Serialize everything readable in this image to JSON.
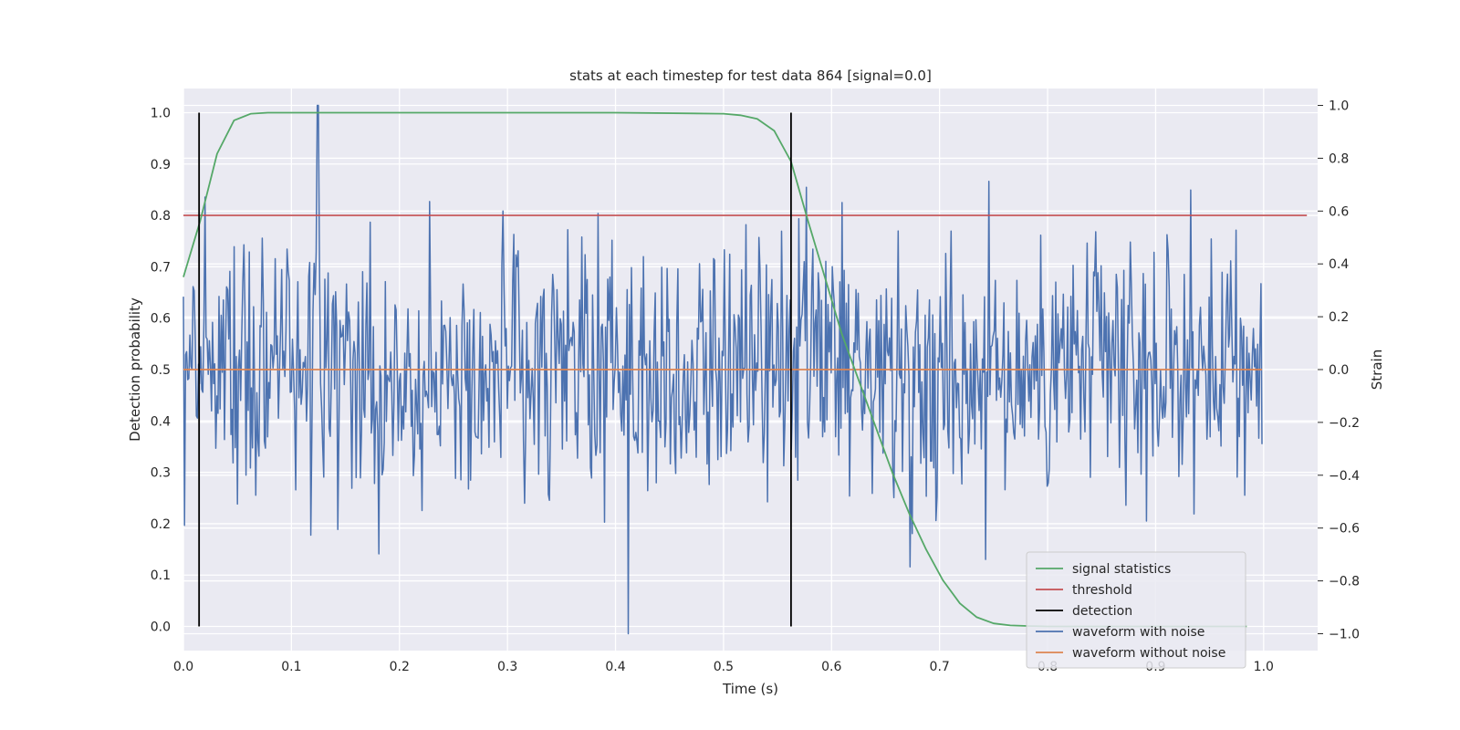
{
  "chart_data": {
    "type": "line",
    "title": "stats at each timestep for test data 864 [signal=0.0]",
    "xlabel": "Time (s)",
    "ylabel": "Detection probability",
    "y2label": "Strain",
    "xlim": [
      0.0,
      1.05
    ],
    "ylim": [
      -0.047,
      1.047
    ],
    "y2lim": [
      -1.064,
      1.064
    ],
    "x_ticks": [
      "0.0",
      "0.1",
      "0.2",
      "0.3",
      "0.4",
      "0.5",
      "0.6",
      "0.7",
      "0.8",
      "0.9",
      "1.0"
    ],
    "y_ticks": [
      "0.0",
      "0.1",
      "0.2",
      "0.3",
      "0.4",
      "0.5",
      "0.6",
      "0.7",
      "0.8",
      "0.9",
      "1.0"
    ],
    "y2_ticks": [
      "−1.0",
      "−0.8",
      "−0.6",
      "−0.4",
      "−0.2",
      "0.0",
      "0.2",
      "0.4",
      "0.6",
      "0.8",
      "1.0"
    ],
    "grid": true,
    "legend_position": "lower-right",
    "colors": {
      "plot_background": "#eaeaf2",
      "signal_statistics": "#55a868",
      "threshold": "#c44e52",
      "detection": "#000000",
      "waveform_with_noise": "#4c72b0",
      "waveform_without_noise": "#dd8452"
    },
    "series": [
      {
        "name": "signal statistics",
        "axis": "left",
        "x": [
          0.0,
          0.0156,
          0.0312,
          0.0469,
          0.0625,
          0.0781,
          0.0938,
          0.1094,
          0.125,
          0.2,
          0.3,
          0.4,
          0.5,
          0.5156,
          0.5312,
          0.5469,
          0.5625,
          0.5781,
          0.5938,
          0.6094,
          0.625,
          0.6406,
          0.6562,
          0.6719,
          0.6875,
          0.7031,
          0.7188,
          0.7344,
          0.75,
          0.7656,
          0.7812,
          0.8,
          0.9,
          0.9844
        ],
        "y": [
          0.68,
          0.79,
          0.92,
          0.985,
          0.998,
          1.0,
          1.0,
          1.0,
          1.0,
          1.0,
          1.0,
          1.0,
          0.998,
          0.995,
          0.988,
          0.965,
          0.905,
          0.79,
          0.68,
          0.57,
          0.48,
          0.39,
          0.3,
          0.22,
          0.15,
          0.09,
          0.045,
          0.018,
          0.006,
          0.002,
          0.001,
          0.0,
          0.0,
          0.0
        ]
      },
      {
        "name": "threshold",
        "axis": "left",
        "x": [
          0.0,
          1.04
        ],
        "y": [
          0.8,
          0.8
        ]
      },
      {
        "name": "detection",
        "axis": "left",
        "events": [
          0.0145,
          0.5625
        ],
        "y_range": [
          0.0,
          1.0
        ]
      },
      {
        "name": "waveform with noise",
        "axis": "right",
        "t_start": 0.0,
        "t_end": 0.9985,
        "n_points": 1000,
        "extremes": {
          "max": 1.0,
          "max_at": 0.1245,
          "min": -1.0,
          "min_at": 0.4115
        },
        "approx_std": 0.4
      },
      {
        "name": "waveform without noise",
        "axis": "right",
        "x": [
          0.0,
          0.9985
        ],
        "y": [
          0.0,
          0.0
        ]
      }
    ]
  }
}
